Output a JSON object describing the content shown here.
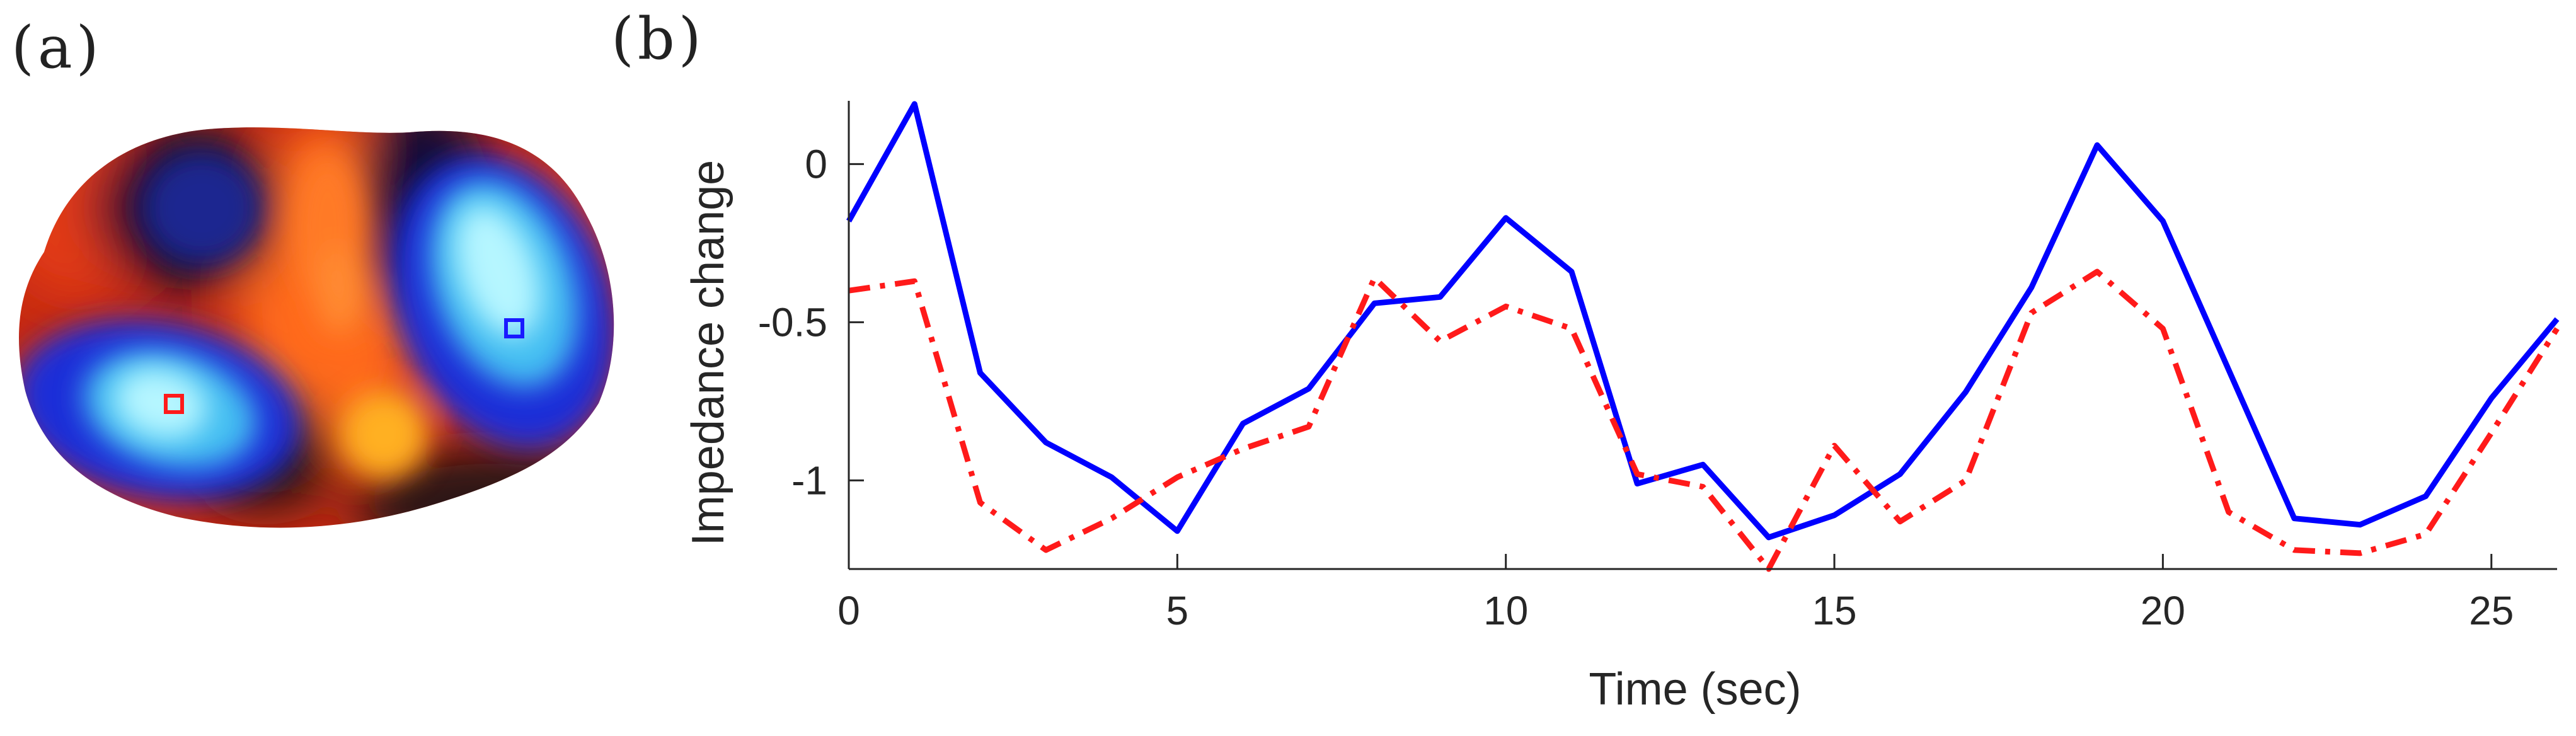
{
  "panels": {
    "a_label": "(a)",
    "b_label": "(b)"
  },
  "image_panel": {
    "markers": [
      {
        "name": "red-roi",
        "color": "#ff1a1a"
      },
      {
        "name": "blue-roi",
        "color": "#1a1aff"
      }
    ]
  },
  "chart_data": {
    "type": "line",
    "xlabel": "Time (sec)",
    "ylabel": "Impedance change",
    "xlim": [
      0,
      26
    ],
    "ylim": [
      -1.28,
      0.2
    ],
    "xticks": [
      0,
      5,
      10,
      15,
      20,
      25
    ],
    "yticks": [
      0,
      -0.5,
      -1
    ],
    "ytick_labels": [
      "0",
      "-0.5",
      "-1"
    ],
    "grid": false,
    "x": [
      0,
      1,
      2,
      3,
      4,
      5,
      6,
      7,
      8,
      9,
      10,
      11,
      12,
      13,
      14,
      15,
      16,
      17,
      18,
      19,
      20,
      21,
      22,
      23,
      24,
      25,
      26
    ],
    "series": [
      {
        "color": "#0000ff",
        "style": "solid",
        "values": [
          -0.18,
          0.19,
          -0.66,
          -0.88,
          -0.99,
          -1.16,
          -0.82,
          -0.71,
          -0.44,
          -0.42,
          -0.17,
          -0.34,
          -1.01,
          -0.95,
          -1.18,
          -1.11,
          -0.98,
          -0.72,
          -0.39,
          0.06,
          -0.18,
          -0.65,
          -1.12,
          -1.14,
          -1.05,
          -0.74,
          -0.49
        ]
      },
      {
        "color": "#ff1a1a",
        "style": "dashdot",
        "values": [
          -0.4,
          -0.37,
          -1.07,
          -1.22,
          -1.12,
          -0.99,
          -0.9,
          -0.83,
          -0.36,
          -0.56,
          -0.45,
          -0.52,
          -0.98,
          -1.02,
          -1.28,
          -0.89,
          -1.13,
          -1.0,
          -0.47,
          -0.34,
          -0.52,
          -1.1,
          -1.22,
          -1.23,
          -1.17,
          -0.85,
          -0.52
        ]
      }
    ]
  }
}
